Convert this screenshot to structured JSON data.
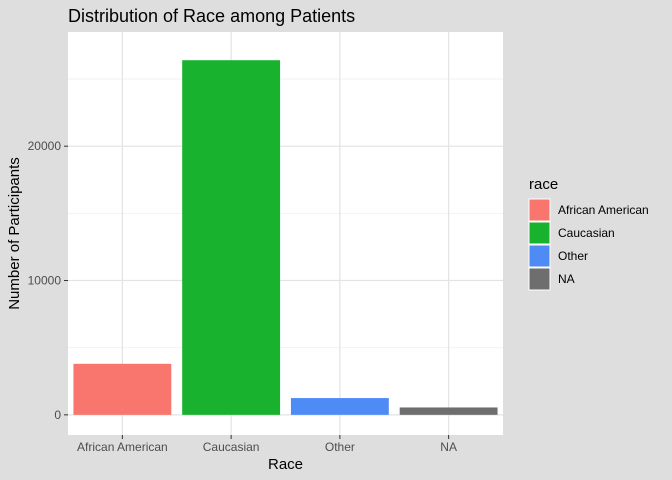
{
  "chart_data": {
    "type": "bar",
    "title": "Distribution of Race among Patients",
    "xlabel": "Race",
    "ylabel": "Number of Participants",
    "categories": [
      "African American",
      "Caucasian",
      "Other",
      "NA"
    ],
    "values": [
      3800,
      26400,
      1250,
      550
    ],
    "colors": [
      "#F8766D",
      "#19B22F",
      "#4F8BF5",
      "#6E6E6E"
    ],
    "ylim": [
      -1500,
      28500
    ],
    "yticks": [
      0,
      10000,
      20000
    ],
    "ytick_labels": [
      "0",
      "10000",
      "20000"
    ],
    "grid": true,
    "legend": {
      "title": "race",
      "position": "right",
      "entries": [
        "African American",
        "Caucasian",
        "Other",
        "NA"
      ]
    }
  },
  "colors": {
    "background": "#DEDEDE",
    "panel": "#FFFFFF",
    "grid_major": "#E3E3E3",
    "grid_minor": "#F2F2F2",
    "tick_text": "#4D4D4D"
  }
}
